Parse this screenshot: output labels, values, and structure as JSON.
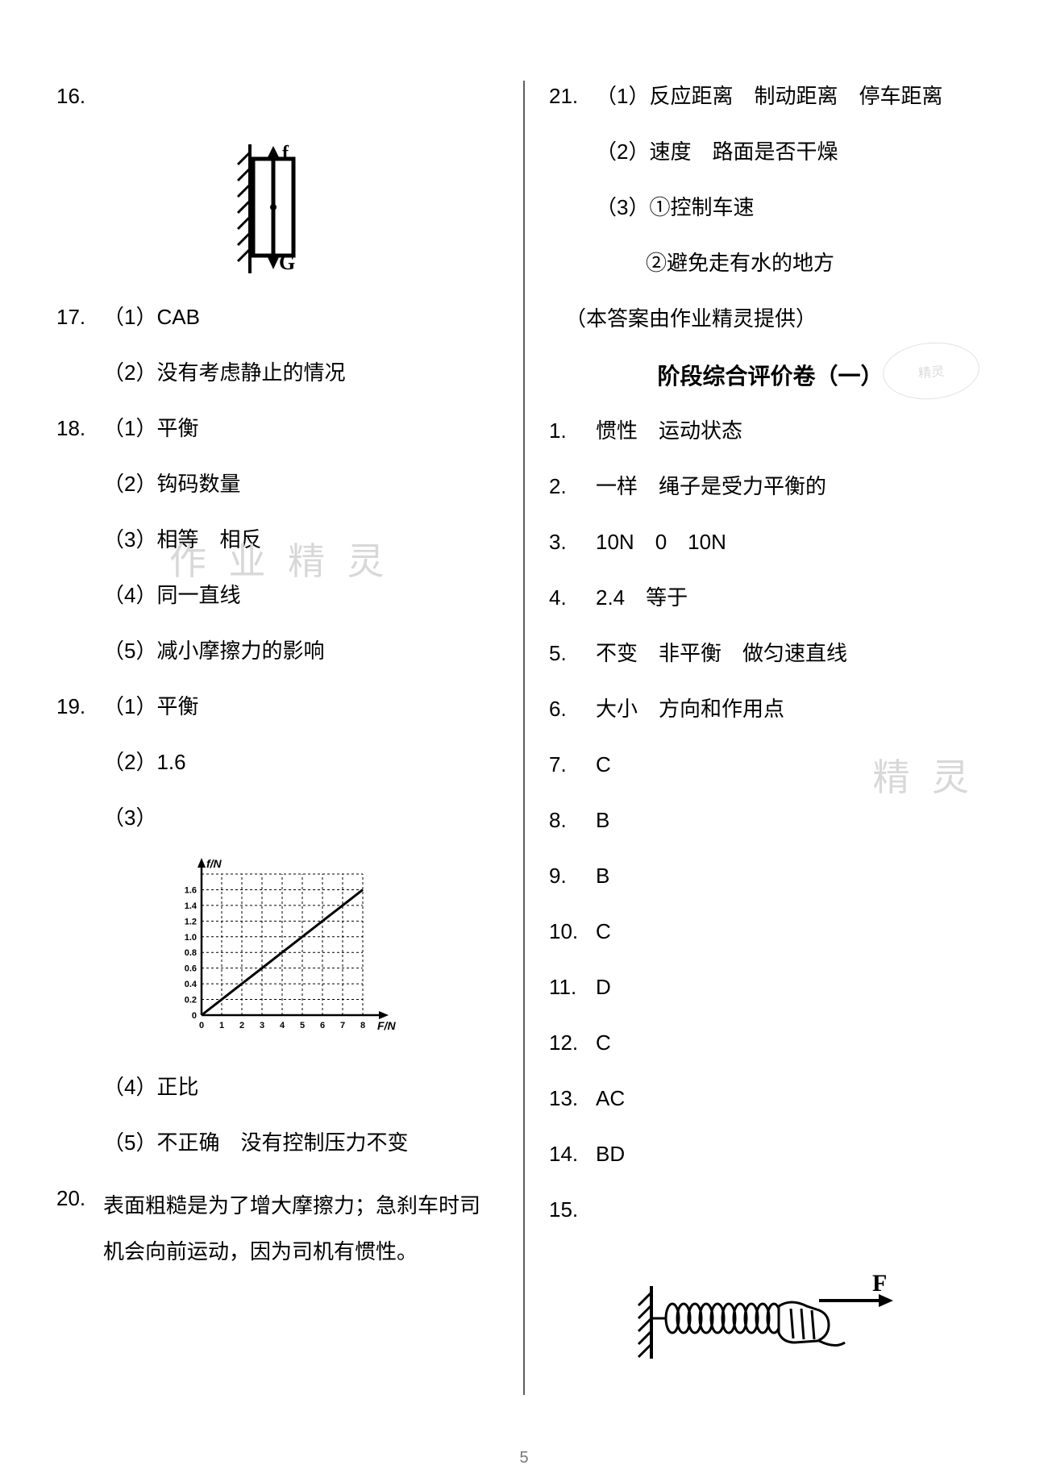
{
  "page_number": "5",
  "left": {
    "q16": {
      "num": "16."
    },
    "q17": {
      "num": "17.",
      "p1": "（1）CAB",
      "p2": "（2）没有考虑静止的情况"
    },
    "q18": {
      "num": "18.",
      "p1": "（1）平衡",
      "p2": "（2）钩码数量",
      "p3": "（3）相等　相反",
      "p4": "（4）同一直线",
      "p5": "（5）减小摩擦力的影响"
    },
    "q19": {
      "num": "19.",
      "p1": "（1）平衡",
      "p2": "（2）1.6",
      "p3": "（3）",
      "p4": "（4）正比",
      "p5": "（5）不正确　没有控制压力不变",
      "chart": {
        "type": "line",
        "x_label": "F/N",
        "y_label": "f/N",
        "x_ticks": [
          "0",
          "1",
          "2",
          "3",
          "4",
          "5",
          "6",
          "7",
          "8"
        ],
        "y_ticks": [
          "0",
          "0.2",
          "0.4",
          "0.6",
          "0.8",
          "1.0",
          "1.2",
          "1.4",
          "1.6"
        ],
        "points": [
          [
            0,
            0
          ],
          [
            1,
            0.2
          ],
          [
            2,
            0.4
          ],
          [
            3,
            0.6
          ],
          [
            4,
            0.8
          ],
          [
            5,
            1.0
          ],
          [
            6,
            1.2
          ],
          [
            7,
            1.4
          ],
          [
            8,
            1.6
          ]
        ],
        "xlim": [
          0,
          8
        ],
        "ylim": [
          0,
          1.8
        ],
        "line_color": "#000000",
        "grid_style": "dashed",
        "grid_color": "#000000",
        "label_fontsize": 11
      }
    },
    "q20": {
      "num": "20.",
      "text": "表面粗糙是为了增大摩擦力；急刹车时司机会向前运动，因为司机有惯性。"
    },
    "fig16": {
      "type": "force-diagram",
      "labels": {
        "up": "f",
        "down": "G"
      },
      "stroke": "#000000",
      "stroke_width": 4
    }
  },
  "right": {
    "q21": {
      "num": "21.",
      "p1": "（1）反应距离　制动距离　停车距离",
      "p2": "（2）速度　路面是否干燥",
      "p3": "（3）①控制车速",
      "p3b": "②避免走有水的地方"
    },
    "credit": "（本答案由作业精灵提供）",
    "section_title": "阶段综合评价卷（一）",
    "answers": [
      {
        "num": "1.",
        "text": "惯性　运动状态"
      },
      {
        "num": "2.",
        "text": "一样　绳子是受力平衡的"
      },
      {
        "num": "3.",
        "text": "10N　0　10N"
      },
      {
        "num": "4.",
        "text": "2.4　等于"
      },
      {
        "num": "5.",
        "text": "不变　非平衡　做匀速直线"
      },
      {
        "num": "6.",
        "text": "大小　方向和作用点"
      },
      {
        "num": "7.",
        "text": "C"
      },
      {
        "num": "8.",
        "text": "B"
      },
      {
        "num": "9.",
        "text": "B"
      },
      {
        "num": "10.",
        "text": "C"
      },
      {
        "num": "11.",
        "text": "D"
      },
      {
        "num": "12.",
        "text": "C"
      },
      {
        "num": "13.",
        "text": "AC"
      },
      {
        "num": "14.",
        "text": "BD"
      },
      {
        "num": "15.",
        "text": ""
      }
    ],
    "fig15": {
      "type": "spring-force-diagram",
      "label": "F",
      "stroke": "#000000"
    }
  },
  "watermarks": {
    "wm1": "作 业 精 灵",
    "wm2": "精 灵",
    "stamp": "精灵"
  }
}
